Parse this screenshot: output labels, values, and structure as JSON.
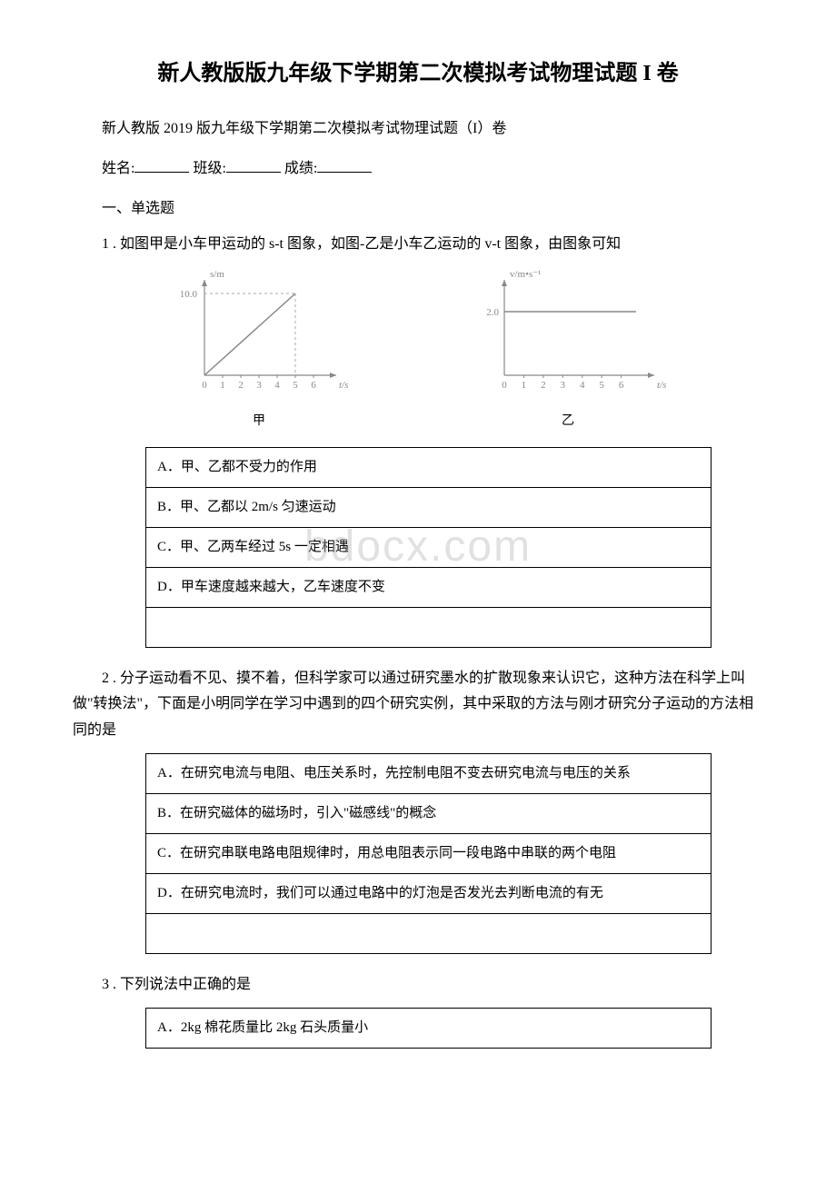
{
  "title": "新人教版版九年级下学期第二次模拟考试物理试题 I 卷",
  "subtitle": "新人教版 2019 版九年级下学期第二次模拟考试物理试题（I）卷",
  "info": {
    "name_label": "姓名:",
    "class_label": "班级:",
    "score_label": "成绩:"
  },
  "section1": "一、单选题",
  "q1": {
    "text": "1 . 如图甲是小车甲运动的 s-t 图象，如图-乙是小车乙运动的 v-t 图象，由图象可知",
    "chart1": {
      "type": "line",
      "ylabel": "s/m",
      "xlabel": "t/s",
      "ymax_label": "10.0",
      "xticks": [
        "0",
        "1",
        "2",
        "3",
        "4",
        "5",
        "6"
      ],
      "line_end_x": 5,
      "line_end_y": 10,
      "caption": "甲",
      "axis_color": "#888888",
      "line_color": "#888888",
      "text_color": "#888888",
      "dash_color": "#aaaaaa"
    },
    "chart2": {
      "type": "line",
      "ylabel": "v/m•s⁻¹",
      "xlabel": "t/s",
      "ymax_label": "2.0",
      "xticks": [
        "0",
        "1",
        "2",
        "3",
        "4",
        "5",
        "6"
      ],
      "hline_y": 2,
      "caption": "乙",
      "axis_color": "#888888",
      "line_color": "#888888",
      "text_color": "#888888"
    },
    "options": [
      "A．甲、乙都不受力的作用",
      "B．甲、乙都以 2m/s 匀速运动",
      "C．甲、乙两车经过 5s 一定相遇",
      "D．甲车速度越来越大，乙车速度不变"
    ]
  },
  "q2": {
    "text": "2 . 分子运动看不见、摸不着，但科学家可以通过研究墨水的扩散现象来认识它，这种方法在科学上叫做\"转换法\"，下面是小明同学在学习中遇到的四个研究实例，其中采取的方法与刚才研究分子运动的方法相同的是",
    "options": [
      "A．在研究电流与电阻、电压关系时，先控制电阻不变去研究电流与电压的关系",
      "B．在研究磁体的磁场时，引入\"磁感线\"的概念",
      "C．在研究串联电路电阻规律时，用总电阻表示同一段电路中串联的两个电阻",
      "D．在研究电流时，我们可以通过电路中的灯泡是否发光去判断电流的有无"
    ]
  },
  "q3": {
    "text": "3 . 下列说法中正确的是",
    "options": [
      "A．2kg 棉花质量比 2kg 石头质量小"
    ]
  },
  "watermark": "bdocx.com"
}
